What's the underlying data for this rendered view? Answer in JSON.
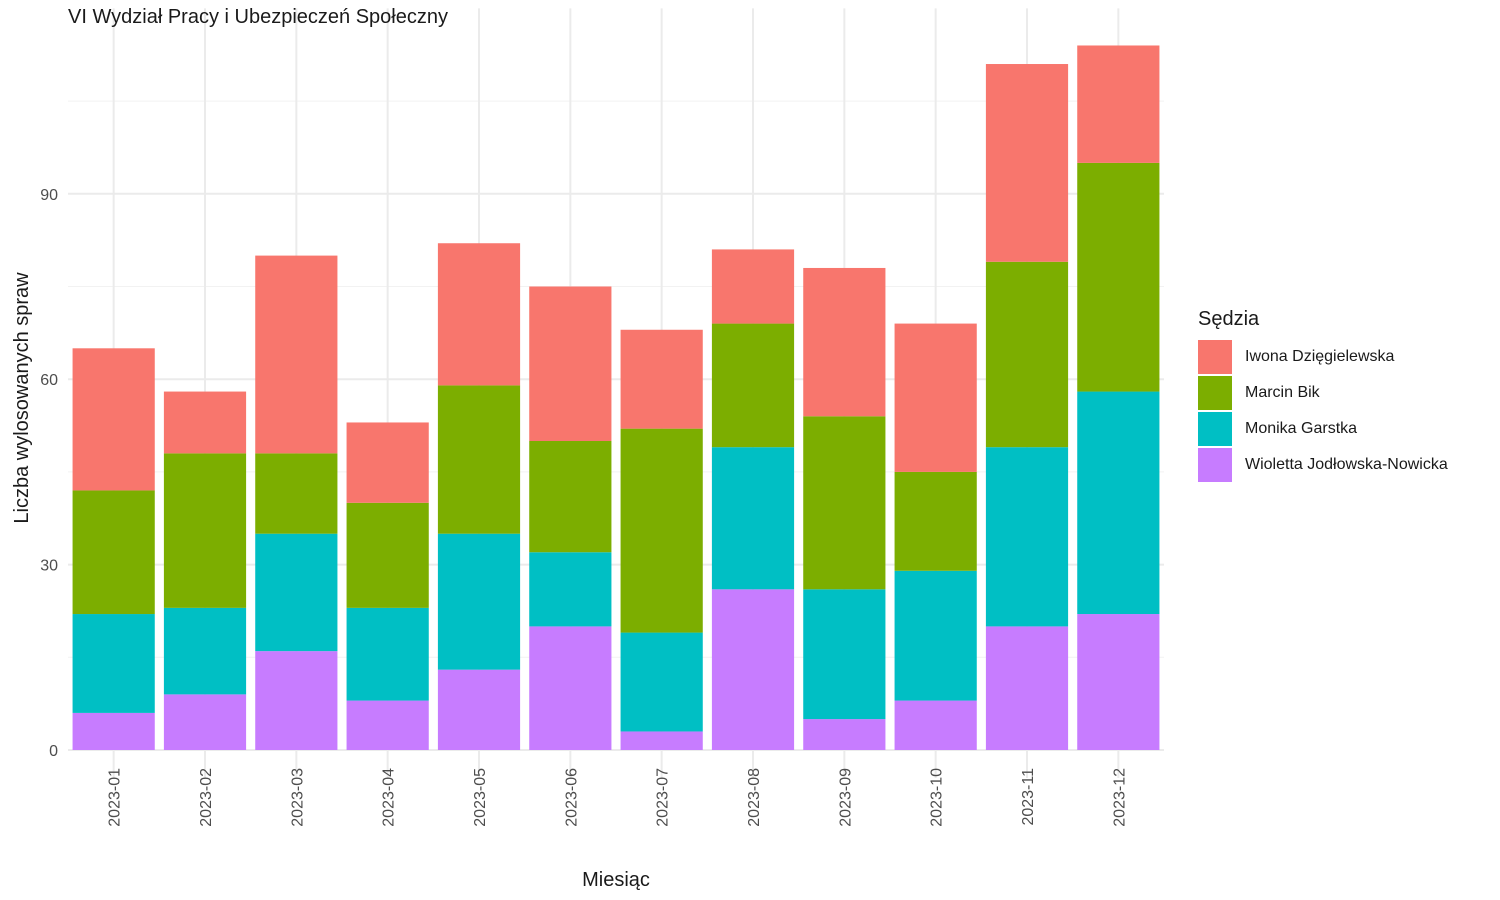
{
  "chart_data": {
    "type": "bar",
    "stacked": true,
    "title": "VI Wydział Pracy i Ubezpieczeń Społeczny",
    "xlabel": "Miesiąc",
    "ylabel": "Liczba wylosowanych spraw",
    "ylim": [
      0,
      120
    ],
    "yticks": [
      0,
      30,
      60,
      90
    ],
    "grid": true,
    "legend_position": "right",
    "legend_title": "Sędzia",
    "categories": [
      "2023-01",
      "2023-02",
      "2023-03",
      "2023-04",
      "2023-05",
      "2023-06",
      "2023-07",
      "2023-08",
      "2023-09",
      "2023-10",
      "2023-11",
      "2023-12"
    ],
    "series": [
      {
        "name": "Iwona Dzięgielewska",
        "color": "#F8766D",
        "values": [
          23,
          10,
          32,
          13,
          23,
          25,
          16,
          12,
          24,
          24,
          32,
          19
        ]
      },
      {
        "name": "Marcin Bik",
        "color": "#7CAE00",
        "values": [
          20,
          25,
          13,
          17,
          24,
          18,
          33,
          20,
          28,
          16,
          30,
          37
        ]
      },
      {
        "name": "Monika Garstka",
        "color": "#00BFC4",
        "values": [
          16,
          14,
          19,
          15,
          22,
          12,
          16,
          23,
          21,
          21,
          29,
          36
        ]
      },
      {
        "name": "Wioletta Jodłowska-Nowicka",
        "color": "#C77CFF",
        "values": [
          6,
          9,
          16,
          8,
          13,
          20,
          3,
          26,
          5,
          8,
          20,
          22
        ]
      }
    ]
  }
}
